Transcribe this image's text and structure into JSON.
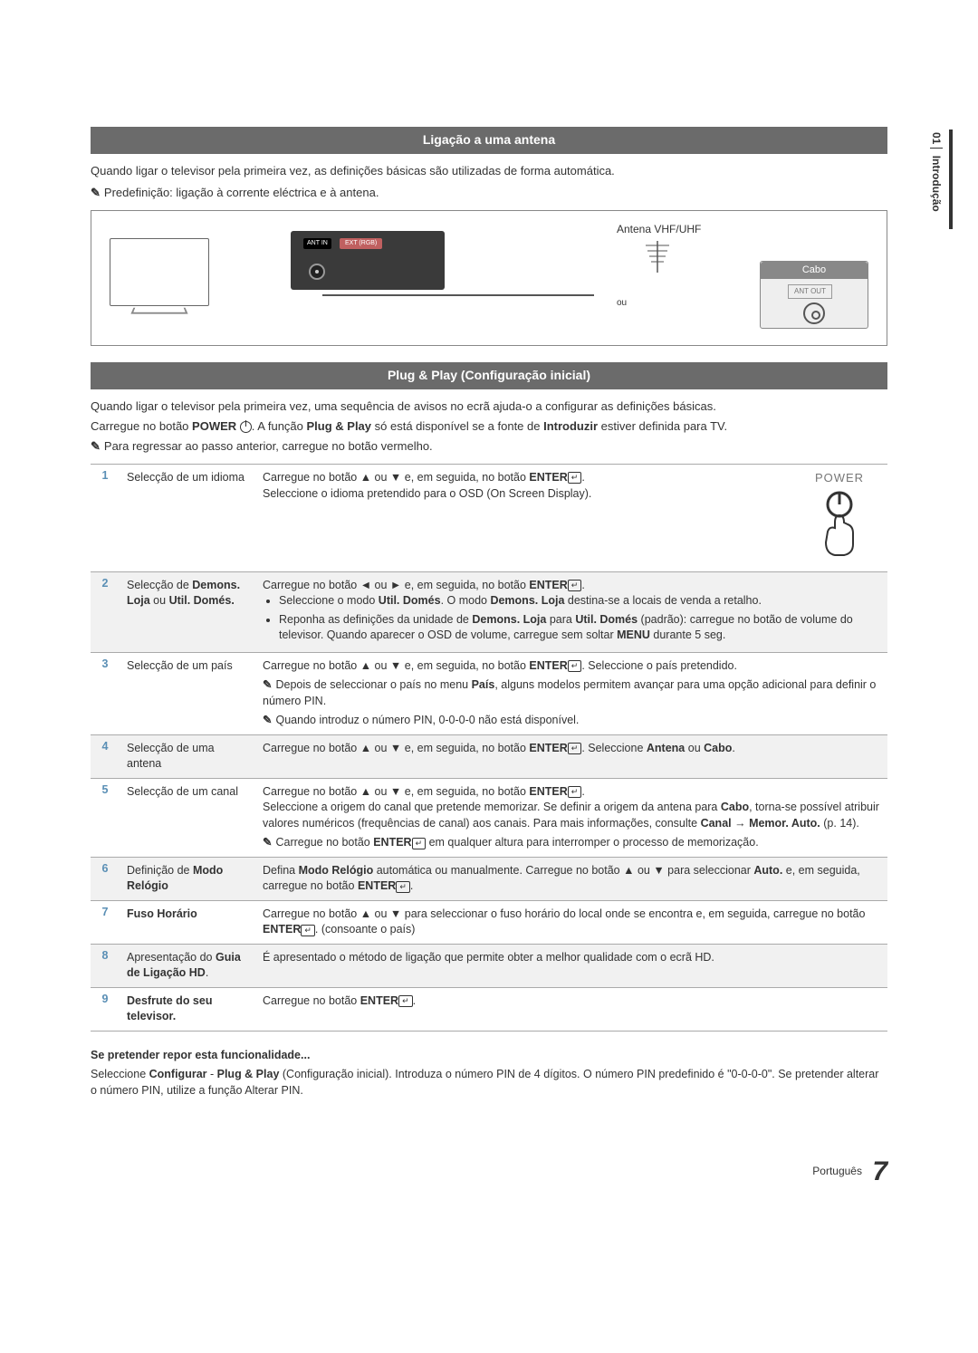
{
  "side": {
    "chapter": "01",
    "title": "Introdução"
  },
  "section1": {
    "header": "Ligação a uma antena",
    "intro": "Quando ligar o televisor pela primeira vez, as definições básicas são utilizadas de forma automática.",
    "note": "Predefinição: ligação à corrente eléctrica e à antena.",
    "diagram": {
      "antenna_label": "Antena VHF/UHF",
      "or_text": "ou",
      "cabo_title": "Cabo",
      "ant_out": "ANT OUT",
      "ant_in": "ANT IN",
      "ext": "EXT (RGB)"
    }
  },
  "section2": {
    "header": "Plug & Play (Configuração inicial)",
    "intro1": "Quando ligar o televisor pela primeira vez, uma sequência de avisos no ecrã ajuda-o a configurar as definições básicas.",
    "intro2_pre": "Carregue no botão ",
    "intro2_power": "POWER",
    "intro2_mid": ". A função ",
    "intro2_pp": "Plug & Play",
    "intro2_post": " só está disponível se a fonte de ",
    "intro2_introduzir": "Introduzir",
    "intro2_end": " estiver definida para TV.",
    "note": "Para regressar ao passo anterior, carregue no botão vermelho.",
    "power_label": "POWER"
  },
  "steps": [
    {
      "num": "1",
      "title": "Selecção de um idioma",
      "desc_html": "Carregue no botão ▲ ou ▼ e, em seguida, no botão <b>ENTER</b><span class='enter-icon'>↵</span>.<br>Seleccione o idioma pretendido para o OSD (On Screen Display)."
    },
    {
      "num": "2",
      "title_html": "Selecção de <b>Demons. Loja</b> ou <b>Util. Domés.</b>",
      "desc_html": "Carregue no botão ◄ ou ► e, em seguida, no botão <b>ENTER</b><span class='enter-icon'>↵</span>.<ul><li>Seleccione o modo <b>Util. Domés</b>. O modo <b>Demons. Loja</b> destina-se a locais de venda a retalho.</li><li>Reponha as definições da unidade de <b>Demons. Loja</b> para <b>Util. Domés</b> (padrão): carregue no botão de volume do televisor. Quando aparecer o OSD de volume, carregue sem soltar <b>MENU</b> durante 5 seg.</li></ul>"
    },
    {
      "num": "3",
      "title": "Selecção de um país",
      "desc_html": "Carregue no botão ▲ ou ▼ e, em seguida, no botão <b>ENTER</b><span class='enter-icon'>↵</span>. Seleccione o país pretendido.<div class='sub-note'><span class='note-icon'></span>Depois de seleccionar o país no menu <b>País</b>, alguns modelos permitem avançar para uma opção adicional para definir o número PIN.</div><div class='sub-note'><span class='note-icon'></span>Quando introduz o número PIN, 0-0-0-0 não está disponível.</div>"
    },
    {
      "num": "4",
      "title": "Selecção de uma antena",
      "desc_html": "Carregue no botão ▲ ou ▼ e, em seguida, no botão <b>ENTER</b><span class='enter-icon'>↵</span>. Seleccione <b>Antena</b> ou <b>Cabo</b>."
    },
    {
      "num": "5",
      "title": "Selecção de um canal",
      "desc_html": "Carregue no botão ▲ ou ▼ e, em seguida, no botão <b>ENTER</b><span class='enter-icon'>↵</span>.<br>Seleccione a origem do canal que pretende memorizar. Se definir a origem da antena para <b>Cabo</b>, torna-se possível atribuir valores numéricos (frequências de canal) aos canais. Para mais informações, consulte <b>Canal → Memor. Auto.</b> (p. 14).<div class='sub-note'><span class='note-icon'></span>Carregue no botão <b>ENTER</b><span class='enter-icon'>↵</span> em qualquer altura para interromper o processo de memorização.</div>"
    },
    {
      "num": "6",
      "title_html": "Definição de <b>Modo Relógio</b>",
      "desc_html": "Defina <b>Modo Relógio</b> automática ou manualmente. Carregue no botão ▲ ou ▼ para seleccionar <b>Auto.</b> e, em seguida, carregue no botão <b>ENTER</b><span class='enter-icon'>↵</span>."
    },
    {
      "num": "7",
      "title_html": "<b>Fuso Horário</b>",
      "desc_html": "Carregue no botão ▲ ou ▼ para seleccionar o fuso horário do local onde se encontra e, em seguida, carregue no botão <b>ENTER</b><span class='enter-icon'>↵</span>. (consoante o país)"
    },
    {
      "num": "8",
      "title_html": "Apresentação do <b>Guia de Ligação HD</b>.",
      "desc_html": "É apresentado o método de ligação que permite obter a melhor qualidade com o ecrã HD."
    },
    {
      "num": "9",
      "title_html": "<b>Desfrute do seu televisor.</b>",
      "desc_html": "Carregue no botão <b>ENTER</b><span class='enter-icon'>↵</span>."
    }
  ],
  "reset": {
    "title": "Se pretender repor esta funcionalidade...",
    "body_html": "Seleccione <b>Configurar</b> - <b>Plug & Play</b> (Configuração inicial). Introduza o número PIN de 4 dígitos. O número PIN predefinido é \"0-0-0-0\". Se pretender alterar o número PIN, utilize a função Alterar PIN."
  },
  "footer": {
    "lang": "Português",
    "page": "7"
  },
  "colors": {
    "section_header_bg": "#6b6b6b",
    "step_num_color": "#5a8fb5",
    "row_alt_bg": "#f1f1f1"
  }
}
